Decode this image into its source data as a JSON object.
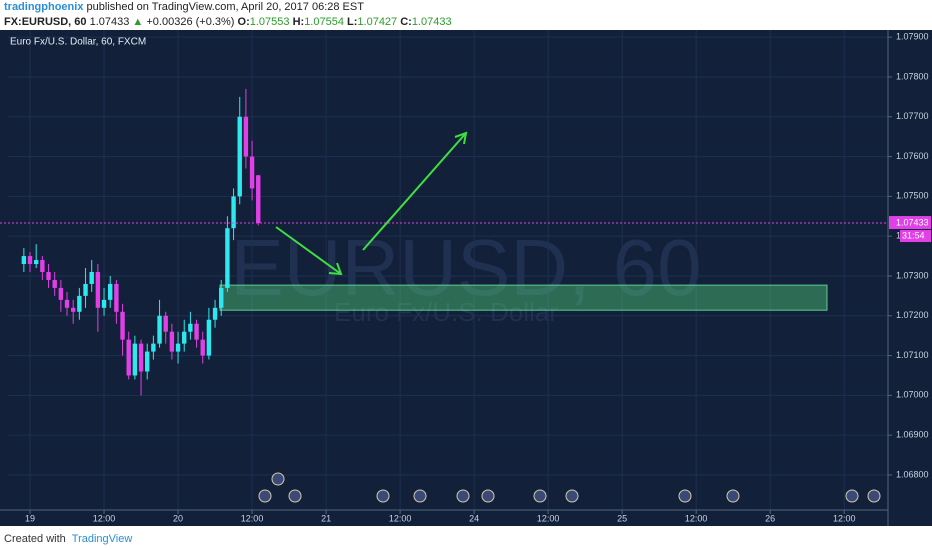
{
  "header": {
    "author": "tradingphoenix",
    "published": "published on TradingView.com, April 20, 2017 06:28 EST",
    "symbol": "FX:EURUSD, 60",
    "last": "1.07433",
    "change": "+0.00326 (+0.3%)",
    "o_label": "O:",
    "o": "1.07553",
    "h_label": "H:",
    "h": "1.07554",
    "l_label": "L:",
    "l": "1.07427",
    "c_label": "C:",
    "c": "1.07433"
  },
  "footer": {
    "created": "Created with",
    "brand": "TradingView"
  },
  "chart_data": {
    "type": "candlestick",
    "title": "Euro Fx/U.S. Dollar, 60, FXCM",
    "watermark": "EURUSD, 60",
    "watermark_sub": "Euro Fx/U.S. Dollar",
    "up_color": "#2ee8f0",
    "down_color": "#e040e6",
    "x": [
      -1,
      0,
      1,
      2,
      3,
      4,
      5,
      6,
      7,
      8,
      9,
      10,
      11,
      12,
      13,
      14,
      15,
      16,
      17,
      18,
      19,
      20,
      21,
      22,
      23,
      24,
      25,
      26,
      27,
      28,
      29,
      30,
      31,
      32,
      33,
      34,
      35,
      36,
      37
    ],
    "open": [
      1.0733,
      1.0735,
      1.0733,
      1.0734,
      1.0731,
      1.0729,
      1.0727,
      1.0724,
      1.0722,
      1.0721,
      1.0725,
      1.0728,
      1.0731,
      1.0722,
      1.0724,
      1.0728,
      1.0721,
      1.0714,
      1.0705,
      1.0713,
      1.0706,
      1.0711,
      1.0713,
      1.072,
      1.0716,
      1.0711,
      1.0713,
      1.0716,
      1.0718,
      1.0714,
      1.071,
      1.0719,
      1.0722,
      1.0727,
      1.0742,
      1.075,
      1.077,
      1.076,
      1.07553
    ],
    "high": [
      1.0737,
      1.0736,
      1.0738,
      1.0735,
      1.0733,
      1.0731,
      1.0729,
      1.0726,
      1.0724,
      1.0727,
      1.0732,
      1.0734,
      1.0733,
      1.0727,
      1.073,
      1.0729,
      1.0723,
      1.0716,
      1.0715,
      1.0714,
      1.0713,
      1.0715,
      1.0724,
      1.0721,
      1.0718,
      1.0716,
      1.0719,
      1.0721,
      1.0719,
      1.0716,
      1.0722,
      1.0724,
      1.0729,
      1.0745,
      1.0752,
      1.0775,
      1.0777,
      1.0764,
      1.07554
    ],
    "low": [
      1.0731,
      1.0731,
      1.0732,
      1.0729,
      1.0727,
      1.0725,
      1.0721,
      1.072,
      1.0718,
      1.0719,
      1.0722,
      1.0726,
      1.0716,
      1.072,
      1.0722,
      1.0718,
      1.071,
      1.0704,
      1.0704,
      1.07,
      1.0704,
      1.0709,
      1.0712,
      1.0713,
      1.0709,
      1.0708,
      1.0711,
      1.0714,
      1.0712,
      1.0708,
      1.0709,
      1.0717,
      1.072,
      1.0726,
      1.0739,
      1.0748,
      1.0757,
      1.0749,
      1.07427
    ],
    "close": [
      1.0735,
      1.0733,
      1.0734,
      1.0731,
      1.0729,
      1.0727,
      1.0724,
      1.0722,
      1.0721,
      1.0725,
      1.0728,
      1.0731,
      1.0722,
      1.0724,
      1.0728,
      1.0721,
      1.0714,
      1.0705,
      1.0713,
      1.0706,
      1.0711,
      1.0713,
      1.072,
      1.0716,
      1.0711,
      1.0713,
      1.0716,
      1.0718,
      1.0714,
      1.071,
      1.0719,
      1.0722,
      1.0727,
      1.0742,
      1.075,
      1.077,
      1.076,
      1.0752,
      1.07433
    ],
    "last_price": 1.07433,
    "countdown": "31:54",
    "zone": [
      1.07214,
      1.07277
    ],
    "xlim": [
      -3.57,
      139.1
    ],
    "ylim": [
      1.06712,
      1.07918
    ],
    "xticks": [
      {
        "value": 0,
        "label": "19"
      },
      {
        "value": 12,
        "label": "12:00"
      },
      {
        "value": 24,
        "label": "20"
      },
      {
        "value": 36,
        "label": "12:00"
      },
      {
        "value": 48,
        "label": "21"
      },
      {
        "value": 60,
        "label": "12:00"
      },
      {
        "value": 72,
        "label": "24"
      },
      {
        "value": 84,
        "label": "12:00"
      },
      {
        "value": 96,
        "label": "25"
      },
      {
        "value": 108,
        "label": "12:00"
      },
      {
        "value": 120,
        "label": "26"
      },
      {
        "value": 132,
        "label": "12:00"
      }
    ],
    "yticks": [
      {
        "value": 1.068,
        "label": "1.06800"
      },
      {
        "value": 1.069,
        "label": "1.06900"
      },
      {
        "value": 1.07,
        "label": "1.07000"
      },
      {
        "value": 1.071,
        "label": "1.07100"
      },
      {
        "value": 1.072,
        "label": "1.07200"
      },
      {
        "value": 1.073,
        "label": "1.07300"
      },
      {
        "value": 1.074,
        "label": "1.07400"
      },
      {
        "value": 1.075,
        "label": "1.07500"
      },
      {
        "value": 1.076,
        "label": "1.07600"
      },
      {
        "value": 1.077,
        "label": "1.07700"
      },
      {
        "value": 1.078,
        "label": "1.07800"
      },
      {
        "value": 1.079,
        "label": "1.07900"
      }
    ],
    "grid": true
  }
}
